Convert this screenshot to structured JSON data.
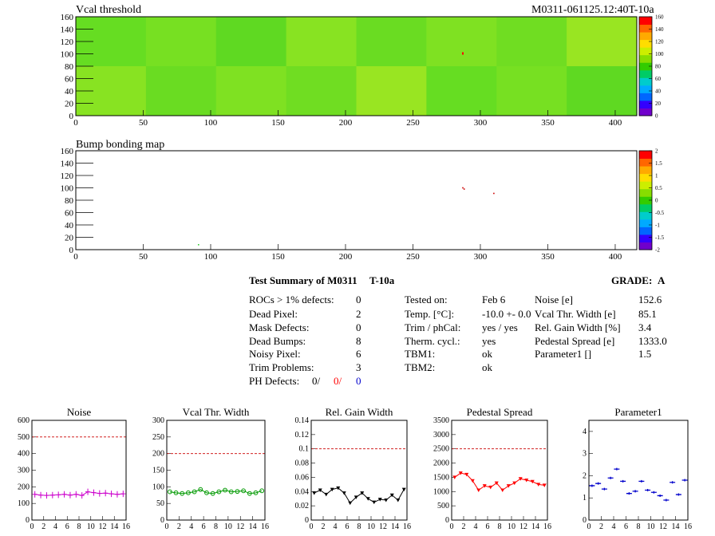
{
  "header": {
    "vcal_title": "Vcal threshold",
    "module_id": "M0311-061125.12:40T-10a",
    "bump_title": "Bump bonding map"
  },
  "colors": {
    "red": "#ff0000",
    "blue": "#0000cc",
    "magenta": "#cc00cc",
    "green": "#009900",
    "limit_line": "#cc0000"
  },
  "summary": {
    "title": "Test Summary of M0311",
    "test_id": "T-10a",
    "grade_label": "GRADE:",
    "grade": "A",
    "rocs_label": "ROCs > 1% defects:",
    "rocs": "0",
    "dead_pixel_label": "Dead Pixel:",
    "dead_pixel": "2",
    "mask_label": "Mask Defects:",
    "mask": "0",
    "dead_bumps_label": "Dead Bumps:",
    "dead_bumps": "8",
    "noisy_label": "Noisy Pixel:",
    "noisy": "6",
    "trim_label": "Trim Problems:",
    "trim": "3",
    "ph_label": "PH Defects:",
    "ph_1": "0/",
    "ph_2": "0/",
    "ph_3": "0",
    "tested_label": "Tested on:",
    "tested": "Feb 6",
    "temp_label": "Temp. [°C]:",
    "temp": "-10.0 +- 0.0",
    "trimcal_label": "Trim / phCal:",
    "trimcal": "yes / yes",
    "therm_label": "Therm. cycl.:",
    "therm": "yes",
    "tbm1_label": "TBM1:",
    "tbm1": "ok",
    "tbm2_label": "TBM2:",
    "tbm2": "ok",
    "noise_label": "Noise [e]",
    "noise": "152.6",
    "vcalw_label": "Vcal Thr. Width [e]",
    "vcalw": "85.1",
    "gain_label": "Rel. Gain Width [%]",
    "gain": "3.4",
    "ped_label": "Pedestal Spread [e]",
    "ped": "1333.0",
    "par1_label": "Parameter1 []",
    "par1": "1.5"
  },
  "chart_data": [
    {
      "type": "heatmap",
      "title": "Vcal threshold",
      "xlim": [
        0,
        416
      ],
      "ylim": [
        0,
        160
      ],
      "xticks": [
        "0",
        "50",
        "100",
        "150",
        "200",
        "250",
        "300",
        "350",
        "400"
      ],
      "yticks": [
        "0",
        "20",
        "40",
        "60",
        "80",
        "100",
        "120",
        "140",
        "160"
      ],
      "color_scale": {
        "min": 0,
        "max": 160,
        "ticks": [
          "0",
          "20",
          "40",
          "60",
          "80",
          "100",
          "120",
          "140",
          "160"
        ]
      },
      "typical_value": 85,
      "hot_pixel": {
        "x": 287,
        "y": 100
      }
    },
    {
      "type": "heatmap",
      "title": "Bump bonding map",
      "xlim": [
        0,
        416
      ],
      "ylim": [
        0,
        160
      ],
      "xticks": [
        "0",
        "50",
        "100",
        "150",
        "200",
        "250",
        "300",
        "350",
        "400"
      ],
      "yticks": [
        "0",
        "20",
        "40",
        "60",
        "80",
        "100",
        "120",
        "140",
        "160"
      ],
      "color_scale": {
        "min": -2,
        "max": 2,
        "ticks": [
          "2",
          "1.5",
          "1",
          "0.5",
          "0",
          "-0.5",
          "-1",
          "-1.5",
          "-2"
        ]
      },
      "points": [
        {
          "x": 287,
          "y": 100,
          "color": "#cc0000"
        },
        {
          "x": 288,
          "y": 98,
          "color": "#cc0000"
        },
        {
          "x": 310,
          "y": 91,
          "color": "#cc0000"
        },
        {
          "x": 91,
          "y": 8,
          "color": "#33cc33"
        }
      ]
    },
    {
      "type": "line",
      "title": "Noise",
      "ylim": [
        0,
        600
      ],
      "yticks": [
        "0",
        "100",
        "200",
        "300",
        "400",
        "500",
        "600"
      ],
      "limit": 500,
      "x": [
        0,
        1,
        2,
        3,
        4,
        5,
        6,
        7,
        8,
        9,
        10,
        11,
        12,
        13,
        14,
        15
      ],
      "values": [
        155,
        150,
        148,
        150,
        152,
        155,
        150,
        155,
        148,
        170,
        165,
        160,
        162,
        158,
        155,
        158
      ],
      "marker": "cross"
    },
    {
      "type": "line",
      "title": "Vcal Thr. Width",
      "ylim": [
        0,
        300
      ],
      "yticks": [
        "0",
        "50",
        "100",
        "150",
        "200",
        "250",
        "300"
      ],
      "limit": 200,
      "x": [
        0,
        1,
        2,
        3,
        4,
        5,
        6,
        7,
        8,
        9,
        10,
        11,
        12,
        13,
        14,
        15
      ],
      "values": [
        85,
        82,
        80,
        82,
        85,
        92,
        82,
        80,
        85,
        90,
        85,
        86,
        88,
        80,
        82,
        88
      ],
      "marker": "circle"
    },
    {
      "type": "line",
      "title": "Rel. Gain Width",
      "ylim": [
        0,
        0.14
      ],
      "yticks": [
        "0",
        "0.02",
        "0.04",
        "0.06",
        "0.08",
        "0.1",
        "0.12",
        "0.14"
      ],
      "limit": 0.1,
      "x": [
        0,
        1,
        2,
        3,
        4,
        5,
        6,
        7,
        8,
        9,
        10,
        11,
        12,
        13,
        14,
        15
      ],
      "values": [
        0.038,
        0.042,
        0.036,
        0.043,
        0.045,
        0.038,
        0.024,
        0.032,
        0.038,
        0.03,
        0.025,
        0.029,
        0.028,
        0.035,
        0.028,
        0.043
      ],
      "marker": "triangle"
    },
    {
      "type": "line",
      "title": "Pedestal Spread",
      "ylim": [
        0,
        3500
      ],
      "yticks": [
        "0",
        "500",
        "1000",
        "1500",
        "2000",
        "2500",
        "3000",
        "3500"
      ],
      "limit": 2500,
      "x": [
        0,
        1,
        2,
        3,
        4,
        5,
        6,
        7,
        8,
        9,
        10,
        11,
        12,
        13,
        14,
        15
      ],
      "values": [
        1500,
        1650,
        1600,
        1380,
        1050,
        1200,
        1150,
        1300,
        1050,
        1200,
        1300,
        1450,
        1400,
        1350,
        1250,
        1220
      ],
      "marker": "triangle"
    },
    {
      "type": "scatter",
      "title": "Parameter1",
      "ylim": [
        0,
        4.5
      ],
      "yticks": [
        "0",
        "1",
        "2",
        "3",
        "4"
      ],
      "x": [
        0,
        1,
        2,
        3,
        4,
        5,
        6,
        7,
        8,
        9,
        10,
        11,
        12,
        13,
        14,
        15
      ],
      "values": [
        1.55,
        1.65,
        1.4,
        1.9,
        2.3,
        1.75,
        1.2,
        1.3,
        1.75,
        1.35,
        1.25,
        1.1,
        0.9,
        1.7,
        1.15,
        1.8
      ],
      "marker": "hbar"
    }
  ]
}
